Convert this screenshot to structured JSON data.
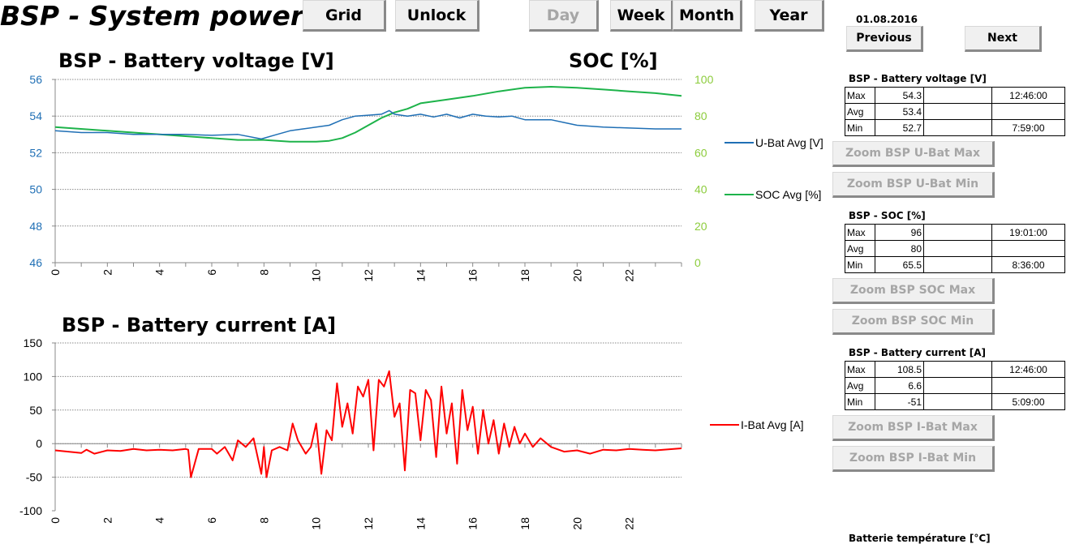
{
  "header": {
    "title": "BSP - System power",
    "buttons": {
      "grid": "Grid",
      "unlock": "Unlock",
      "day": "Day",
      "week": "Week",
      "month": "Month",
      "year": "Year"
    }
  },
  "nav": {
    "date": "01.08.2016",
    "previous": "Previous",
    "next": "Next"
  },
  "stats": [
    {
      "title": "BSP - Battery voltage [V]",
      "rows": [
        {
          "label": "Max",
          "value": "54.3",
          "time": "12:46:00"
        },
        {
          "label": "Avg",
          "value": "53.4",
          "time": ""
        },
        {
          "label": "Min",
          "value": "52.7",
          "time": "7:59:00"
        }
      ],
      "zoom_max": "Zoom BSP U-Bat Max",
      "zoom_min": "Zoom BSP U-Bat Min"
    },
    {
      "title": "BSP - SOC [%]",
      "rows": [
        {
          "label": "Max",
          "value": "96",
          "time": "19:01:00"
        },
        {
          "label": "Avg",
          "value": "80",
          "time": ""
        },
        {
          "label": "Min",
          "value": "65.5",
          "time": "8:36:00"
        }
      ],
      "zoom_max": "Zoom BSP SOC Max",
      "zoom_min": "Zoom BSP SOC Min"
    },
    {
      "title": "BSP - Battery current [A]",
      "rows": [
        {
          "label": "Max",
          "value": "108.5",
          "time": "12:46:00"
        },
        {
          "label": "Avg",
          "value": "6.6",
          "time": ""
        },
        {
          "label": "Min",
          "value": "-51",
          "time": "5:09:00"
        }
      ],
      "zoom_max": "Zoom BSP I-Bat Max",
      "zoom_min": "Zoom BSP I-Bat Min"
    }
  ],
  "next_section_title": "Batterie température [°C]",
  "chart_data": [
    {
      "type": "line",
      "title": "BSP - Battery voltage [V]",
      "title_right": "SOC [%]",
      "xticks": [
        "0",
        "2",
        "4",
        "6",
        "8",
        "10",
        "12",
        "14",
        "16",
        "18",
        "20",
        "22"
      ],
      "xlim": [
        0,
        24
      ],
      "ylim": [
        46,
        56
      ],
      "yticks": [
        "46",
        "48",
        "50",
        "52",
        "54",
        "56"
      ],
      "y2lim": [
        0,
        100
      ],
      "y2ticks": [
        "0",
        "20",
        "40",
        "60",
        "80",
        "100"
      ],
      "colors": {
        "ubat": "#1f6fb5",
        "soc": "#1db34a",
        "left_axis": "#1f6fb5",
        "right_axis": "#8ccc3c"
      },
      "series": [
        {
          "name": "U-Bat Avg [V]",
          "axis": "left",
          "x": [
            0,
            1,
            2,
            3,
            4,
            5,
            6,
            7,
            7.9,
            8.5,
            9,
            9.5,
            10,
            10.5,
            11,
            11.5,
            12,
            12.5,
            12.8,
            13,
            13.5,
            14,
            14.5,
            15,
            15.5,
            16,
            16.5,
            17,
            17.5,
            18,
            18.5,
            19,
            19.5,
            20,
            21,
            22,
            23,
            24
          ],
          "y": [
            53.2,
            53.1,
            53.1,
            53.0,
            53.0,
            53.0,
            52.95,
            53.0,
            52.75,
            53.0,
            53.2,
            53.3,
            53.4,
            53.5,
            53.8,
            54.0,
            54.05,
            54.1,
            54.3,
            54.1,
            54.0,
            54.1,
            53.95,
            54.1,
            53.9,
            54.1,
            54.0,
            53.95,
            54.0,
            53.8,
            53.8,
            53.8,
            53.65,
            53.5,
            53.4,
            53.35,
            53.3,
            53.3
          ]
        },
        {
          "name": "SOC Avg [%]",
          "axis": "right",
          "x": [
            0,
            2,
            4,
            6,
            7,
            8,
            9,
            10,
            10.5,
            11,
            11.5,
            12,
            12.5,
            13,
            13.5,
            14,
            15,
            16,
            17,
            18,
            19,
            20,
            21,
            22,
            23,
            24
          ],
          "y": [
            74,
            72,
            70,
            68,
            67,
            67,
            66,
            66,
            66.5,
            68,
            71,
            75,
            79,
            82,
            84,
            87,
            89,
            91,
            93.5,
            95.5,
            96,
            95.5,
            94.5,
            93.5,
            92.5,
            91
          ]
        }
      ]
    },
    {
      "type": "line",
      "title": "BSP - Battery current [A]",
      "xticks": [
        "0",
        "2",
        "4",
        "6",
        "8",
        "10",
        "12",
        "14",
        "16",
        "18",
        "20",
        "22"
      ],
      "xlim": [
        0,
        24
      ],
      "ylim": [
        -100,
        150
      ],
      "yticks": [
        "-100",
        "-50",
        "0",
        "50",
        "100",
        "150"
      ],
      "colors": {
        "ibat": "#ff0000"
      },
      "series": [
        {
          "name": "I-Bat Avg [A]",
          "x": [
            0,
            0.5,
            1,
            1.2,
            1.5,
            2,
            2.5,
            3,
            3.5,
            4,
            4.5,
            5,
            5.1,
            5.2,
            5.5,
            6,
            6.2,
            6.5,
            6.8,
            7,
            7.3,
            7.6,
            7.9,
            8,
            8.1,
            8.3,
            8.6,
            8.9,
            9.1,
            9.3,
            9.6,
            9.8,
            10,
            10.2,
            10.4,
            10.6,
            10.8,
            11,
            11.2,
            11.4,
            11.6,
            11.8,
            12,
            12.2,
            12.4,
            12.6,
            12.8,
            13,
            13.2,
            13.4,
            13.6,
            13.8,
            14,
            14.2,
            14.4,
            14.6,
            14.8,
            15,
            15.2,
            15.4,
            15.6,
            15.8,
            16,
            16.2,
            16.4,
            16.6,
            16.8,
            17,
            17.2,
            17.4,
            17.6,
            17.8,
            18,
            18.3,
            18.6,
            19,
            19.5,
            20,
            20.5,
            21,
            21.5,
            22,
            22.5,
            23,
            24
          ],
          "y": [
            -10,
            -12,
            -14,
            -9,
            -15,
            -10,
            -11,
            -8,
            -10,
            -9,
            -10,
            -8,
            -9,
            -50,
            -8,
            -8,
            -15,
            -5,
            -25,
            5,
            -5,
            8,
            -45,
            -5,
            -50,
            -10,
            -5,
            -10,
            30,
            5,
            -15,
            -5,
            30,
            -45,
            20,
            5,
            90,
            25,
            60,
            15,
            85,
            70,
            95,
            -10,
            95,
            85,
            108,
            40,
            60,
            -40,
            80,
            75,
            5,
            80,
            65,
            -20,
            85,
            15,
            60,
            -30,
            80,
            20,
            55,
            -15,
            50,
            0,
            35,
            -15,
            30,
            -5,
            25,
            0,
            15,
            -5,
            8,
            -5,
            -12,
            -10,
            -15,
            -9,
            -10,
            -8,
            -9,
            -10,
            -7
          ]
        }
      ]
    }
  ]
}
